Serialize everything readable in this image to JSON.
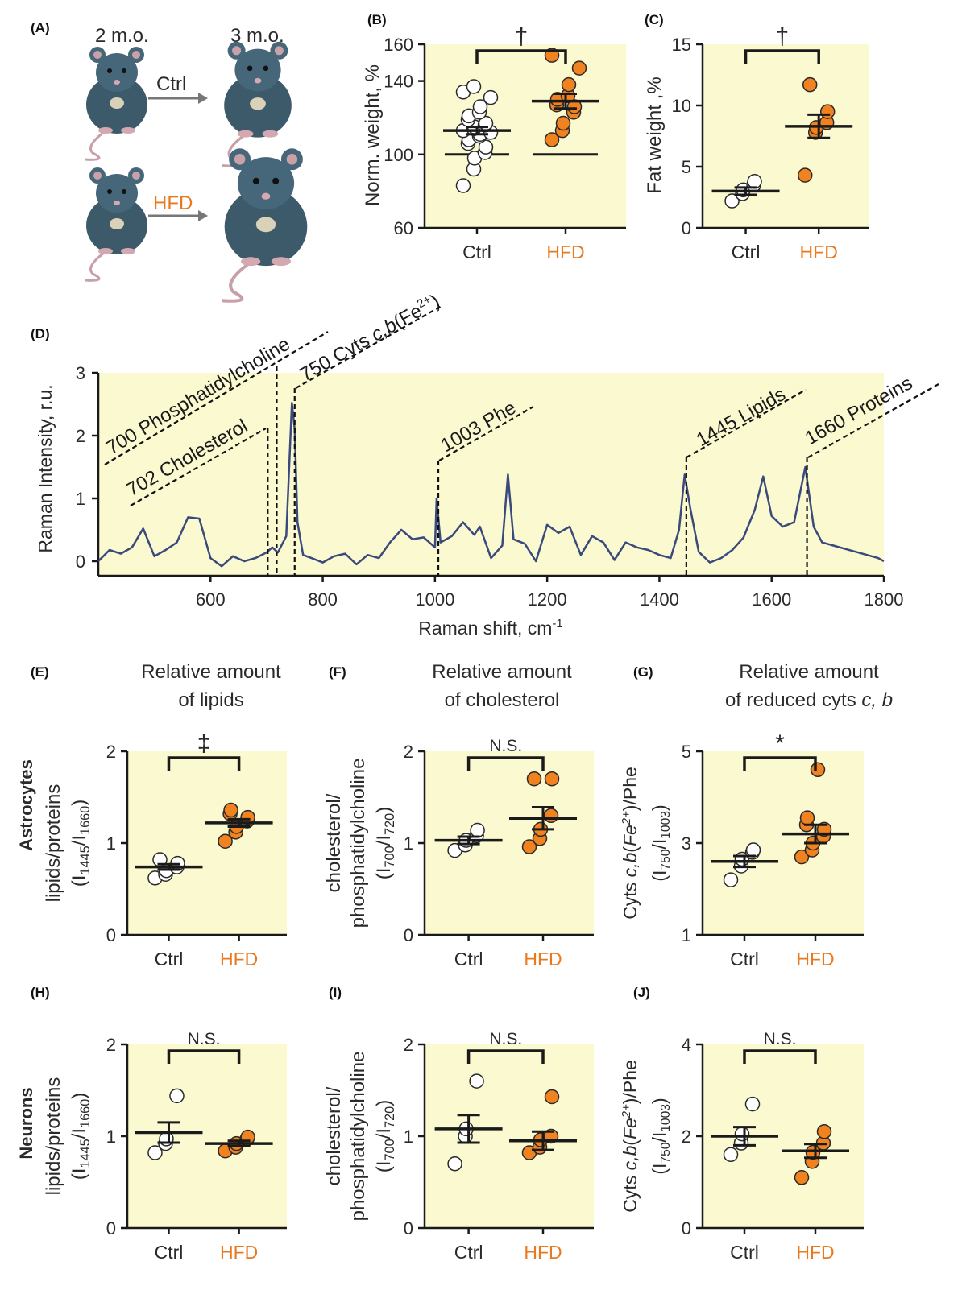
{
  "colors": {
    "panel_bg": "#fbf9cf",
    "ctrl_fill": "#ffffff",
    "hfd_fill": "#f08220",
    "hfd_label": "#e9791f",
    "spectrum_line": "#3b4a7c",
    "axis": "#1a1a1a"
  },
  "panel_a": {
    "letter": "(A)",
    "age_start": "2 m.o.",
    "age_end": "3 m.o.",
    "ctrl_label": "Ctrl",
    "hfd_label": "HFD",
    "icons": [
      "mouse-illustration",
      "arrow-right-icon"
    ]
  },
  "headings": {
    "astrocytes": "Astrocytes",
    "neurons": "Neurons",
    "E_line1": "Relative amount",
    "E_line2": "of lipids",
    "F_line1": "Relative amount",
    "F_line2": "of cholesterol",
    "G_line1": "Relative amount",
    "G_line2_prefix": "of reduced cyts ",
    "G_line2_italic": "c, b"
  },
  "chart_data": [
    {
      "id": "B",
      "letter": "(B)",
      "type": "scatter",
      "categories": [
        "Ctrl",
        "HFD"
      ],
      "ylabel": "Norm. weight, %",
      "ylim": [
        60,
        160
      ],
      "yticks": [
        "60",
        "100",
        "140",
        "160"
      ],
      "ytick_values": [
        60,
        100,
        140,
        160
      ],
      "significance": "†",
      "baseline": 100,
      "series": [
        {
          "name": "Ctrl",
          "values": [
            83,
            92,
            98,
            101,
            104,
            106,
            108,
            110,
            111,
            112,
            113,
            114,
            115,
            116,
            117,
            119,
            121,
            123,
            126,
            131,
            134,
            137
          ],
          "mean": 113,
          "sem": 2
        },
        {
          "name": "HFD",
          "values": [
            108,
            113,
            117,
            123,
            126,
            127,
            130,
            132,
            138,
            147,
            154
          ],
          "mean": 129,
          "sem": 4
        }
      ]
    },
    {
      "id": "C",
      "letter": "(C)",
      "type": "scatter",
      "categories": [
        "Ctrl",
        "HFD"
      ],
      "ylabel": "Fat weight ,%",
      "ylim": [
        0,
        15
      ],
      "yticks": [
        "0",
        "5",
        "10",
        "15"
      ],
      "ytick_values": [
        0,
        5,
        10,
        15
      ],
      "significance": "†",
      "series": [
        {
          "name": "Ctrl",
          "values": [
            2.2,
            2.8,
            3.1,
            3.5,
            3.8
          ],
          "mean": 3.0,
          "sem": 0.3
        },
        {
          "name": "HFD",
          "values": [
            4.3,
            7.8,
            8.2,
            8.6,
            9.5,
            11.7
          ],
          "mean": 8.3,
          "sem": 0.95
        }
      ]
    },
    {
      "id": "D",
      "letter": "(D)",
      "type": "line",
      "xlabel": "Raman shift, cm",
      "xlabel_sup": "-1",
      "ylabel": "Raman Intensity, r.u.",
      "xlim": [
        400,
        1800
      ],
      "ylim": [
        0,
        3
      ],
      "xticks": [
        "600",
        "800",
        "1000",
        "1200",
        "1400",
        "1600",
        "1800"
      ],
      "xtick_values": [
        600,
        800,
        1000,
        1200,
        1400,
        1600,
        1800
      ],
      "yticks": [
        "0",
        "1",
        "2",
        "3"
      ],
      "ytick_values": [
        0,
        1,
        2,
        3
      ],
      "x": [
        400,
        420,
        440,
        460,
        480,
        500,
        520,
        540,
        560,
        580,
        600,
        620,
        640,
        660,
        680,
        700,
        710,
        720,
        735,
        745,
        750,
        755,
        765,
        780,
        800,
        820,
        840,
        860,
        880,
        900,
        920,
        940,
        960,
        980,
        1000,
        1003,
        1010,
        1030,
        1050,
        1070,
        1080,
        1100,
        1120,
        1130,
        1140,
        1160,
        1180,
        1200,
        1220,
        1240,
        1260,
        1280,
        1300,
        1320,
        1340,
        1360,
        1380,
        1400,
        1420,
        1435,
        1445,
        1455,
        1470,
        1490,
        1510,
        1530,
        1550,
        1570,
        1585,
        1600,
        1620,
        1640,
        1660,
        1675,
        1690,
        1710,
        1730,
        1750,
        1770,
        1790,
        1800
      ],
      "values": [
        0.0,
        0.18,
        0.12,
        0.22,
        0.52,
        0.08,
        0.18,
        0.3,
        0.7,
        0.68,
        0.05,
        -0.08,
        0.08,
        0.0,
        0.05,
        0.14,
        0.22,
        0.14,
        0.4,
        2.52,
        2.1,
        0.62,
        0.1,
        0.05,
        -0.02,
        0.08,
        0.12,
        -0.05,
        0.1,
        0.05,
        0.3,
        0.5,
        0.35,
        0.38,
        0.22,
        1.0,
        0.3,
        0.4,
        0.62,
        0.42,
        0.55,
        0.05,
        0.25,
        1.38,
        0.35,
        0.28,
        0.0,
        0.58,
        0.45,
        0.55,
        0.1,
        0.4,
        0.3,
        0.02,
        0.3,
        0.22,
        0.18,
        0.1,
        0.05,
        0.5,
        1.38,
        0.85,
        0.15,
        -0.02,
        0.05,
        0.18,
        0.38,
        0.82,
        1.35,
        0.72,
        0.55,
        0.62,
        1.5,
        0.55,
        0.3,
        0.25,
        0.2,
        0.15,
        0.1,
        0.05,
        0.0
      ],
      "annotations": [
        {
          "text": "700 Phosphatidylcholine",
          "x": 718,
          "at": 3.0
        },
        {
          "text": "702 Cholesterol",
          "x": 702,
          "at": 2.2
        },
        {
          "text": "750 Cyts ",
          "italic": "c,b",
          "tail": "(Fe",
          "sup": "2+",
          "end": ")",
          "x": 750,
          "at": 2.8
        },
        {
          "text": "1003 Phe",
          "x": 1006,
          "at": 1.6
        },
        {
          "text": "1445 Lipids",
          "x": 1448,
          "at": 1.7
        },
        {
          "text": "1660 Proteins",
          "x": 1663,
          "at": 1.6
        }
      ]
    },
    {
      "id": "E",
      "letter": "(E)",
      "type": "scatter",
      "categories": [
        "Ctrl",
        "HFD"
      ],
      "ylabel": "lipids/proteins",
      "ylabel2": "(I1445/I1660)",
      "ylim": [
        0,
        2
      ],
      "yticks": [
        "0",
        "1",
        "2"
      ],
      "ytick_values": [
        0,
        1,
        2
      ],
      "significance": "‡",
      "series": [
        {
          "name": "Ctrl",
          "values": [
            0.62,
            0.66,
            0.7,
            0.74,
            0.78,
            0.82
          ],
          "mean": 0.74,
          "sem": 0.03
        },
        {
          "name": "HFD",
          "values": [
            1.02,
            1.12,
            1.18,
            1.24,
            1.28,
            1.32,
            1.36
          ],
          "mean": 1.22,
          "sem": 0.04
        }
      ]
    },
    {
      "id": "F",
      "letter": "(F)",
      "type": "scatter",
      "categories": [
        "Ctrl",
        "HFD"
      ],
      "ylabel": "cholesterol/",
      "ylabel_b": "phosphatidylcholine",
      "ylabel2": "(I700/I720)",
      "ylim": [
        0,
        2
      ],
      "yticks": [
        "0",
        "1",
        "2"
      ],
      "ytick_values": [
        0,
        1,
        2
      ],
      "significance": "N.S.",
      "series": [
        {
          "name": "Ctrl",
          "values": [
            0.92,
            0.98,
            1.03,
            1.08,
            1.14
          ],
          "mean": 1.03,
          "sem": 0.04
        },
        {
          "name": "HFD",
          "values": [
            0.96,
            1.05,
            1.15,
            1.3,
            1.7,
            1.7
          ],
          "mean": 1.27,
          "sem": 0.12
        }
      ]
    },
    {
      "id": "G",
      "letter": "(G)",
      "type": "scatter",
      "categories": [
        "Ctrl",
        "HFD"
      ],
      "ylabel": "Cyts c,b(Fe2+)/Phe",
      "ylabel2": "(I750/I1003)",
      "ylim": [
        1,
        5
      ],
      "yticks": [
        "1",
        "3",
        "5"
      ],
      "ytick_values": [
        1,
        3,
        5
      ],
      "significance": "*",
      "series": [
        {
          "name": "Ctrl",
          "values": [
            2.2,
            2.5,
            2.65,
            2.8,
            2.85
          ],
          "mean": 2.6,
          "sem": 0.12
        },
        {
          "name": "HFD",
          "values": [
            2.7,
            2.85,
            3.0,
            3.15,
            3.3,
            3.4,
            3.55,
            4.6
          ],
          "mean": 3.2,
          "sem": 0.2
        }
      ]
    },
    {
      "id": "H",
      "letter": "(H)",
      "type": "scatter",
      "categories": [
        "Ctrl",
        "HFD"
      ],
      "ylabel": "lipids/proteins",
      "ylabel2": "(I1445/I1660)",
      "ylim": [
        0,
        2
      ],
      "yticks": [
        "0",
        "1",
        "2"
      ],
      "ytick_values": [
        0,
        1,
        2
      ],
      "significance": "N.S.",
      "series": [
        {
          "name": "Ctrl",
          "values": [
            0.82,
            0.92,
            0.97,
            1.44
          ],
          "mean": 1.04,
          "sem": 0.11
        },
        {
          "name": "HFD",
          "values": [
            0.84,
            0.88,
            0.92,
            0.97,
            0.99
          ],
          "mean": 0.92,
          "sem": 0.03
        }
      ]
    },
    {
      "id": "I",
      "letter": "(I)",
      "type": "scatter",
      "categories": [
        "Ctrl",
        "HFD"
      ],
      "ylabel": "cholesterol/",
      "ylabel_b": "phosphatidylcholine",
      "ylabel2": "(I700/I720)",
      "ylim": [
        0,
        2
      ],
      "yticks": [
        "0",
        "1",
        "2"
      ],
      "ytick_values": [
        0,
        1,
        2
      ],
      "significance": "N.S.",
      "series": [
        {
          "name": "Ctrl",
          "values": [
            0.7,
            1.0,
            1.08,
            1.6
          ],
          "mean": 1.08,
          "sem": 0.15
        },
        {
          "name": "HFD",
          "values": [
            0.82,
            0.88,
            0.96,
            1.0,
            1.43
          ],
          "mean": 0.95,
          "sem": 0.1
        }
      ]
    },
    {
      "id": "J",
      "letter": "(J)",
      "type": "scatter",
      "categories": [
        "Ctrl",
        "HFD"
      ],
      "ylabel": "Cyts c,b(Fe2+)/Phe",
      "ylabel2": "(I750/I1003)",
      "ylim": [
        0,
        4
      ],
      "yticks": [
        "0",
        "2",
        "4"
      ],
      "ytick_values": [
        0,
        2,
        4
      ],
      "significance": "N.S.",
      "series": [
        {
          "name": "Ctrl",
          "values": [
            1.6,
            1.85,
            2.05,
            2.7
          ],
          "mean": 2.0,
          "sem": 0.2
        },
        {
          "name": "HFD",
          "values": [
            1.1,
            1.45,
            1.65,
            1.85,
            2.1
          ],
          "mean": 1.68,
          "sem": 0.15
        }
      ]
    }
  ]
}
